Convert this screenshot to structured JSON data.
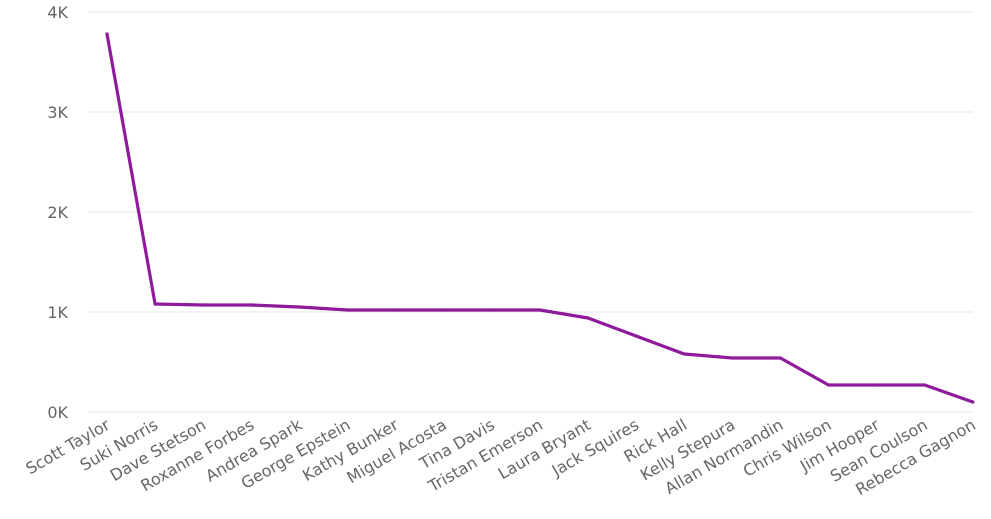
{
  "chart_data": {
    "type": "line",
    "categories": [
      "Scott Taylor",
      "Suki Norris",
      "Dave Stetson",
      "Roxanne Forbes",
      "Andrea Spark",
      "George Epstein",
      "Kathy Bunker",
      "Miguel Acosta",
      "Tina Davis",
      "Tristan Emerson",
      "Laura Bryant",
      "Jack Squires",
      "Rick Hall",
      "Kelly Stepura",
      "Allan Normandin",
      "Chris Wilson",
      "Jim Hooper",
      "Sean Coulson",
      "Rebecca Gagnon"
    ],
    "series": [
      {
        "values": [
          3780,
          1080,
          1070,
          1070,
          1050,
          1020,
          1020,
          1020,
          1020,
          1020,
          940,
          760,
          580,
          540,
          540,
          270,
          270,
          270,
          100
        ]
      }
    ],
    "y_ticks": [
      {
        "value": 0,
        "label": "0K"
      },
      {
        "value": 1000,
        "label": "1K"
      },
      {
        "value": 2000,
        "label": "2K"
      },
      {
        "value": 3000,
        "label": "3K"
      },
      {
        "value": 4000,
        "label": "4K"
      }
    ],
    "ylim": [
      0,
      4000
    ],
    "grid": true,
    "legend": "none",
    "colors": {
      "line": "#8e1a9c",
      "grid": "#e5e5e5",
      "tick_text": "#666666"
    }
  }
}
